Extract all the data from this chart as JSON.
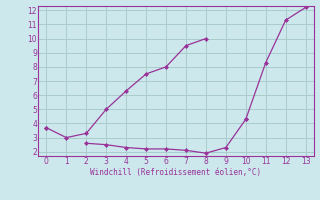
{
  "xlabel": "Windchill (Refroidissement éolien,°C)",
  "x": [
    0,
    1,
    2,
    3,
    4,
    5,
    6,
    7,
    8,
    9,
    10,
    11,
    12,
    13
  ],
  "line1": [
    3.7,
    3.0,
    3.3,
    5.0,
    6.3,
    7.5,
    8.0,
    9.5,
    10.0,
    null,
    4.3,
    8.3,
    11.3,
    12.2
  ],
  "line2": [
    3.7,
    null,
    2.6,
    2.5,
    2.3,
    2.2,
    2.2,
    2.1,
    1.9,
    2.3,
    4.3,
    null,
    null,
    null
  ],
  "color": "#993399",
  "bg_color": "#cce8ec",
  "grid_color": "#aacccc",
  "ylim": [
    1.7,
    12.3
  ],
  "xlim": [
    -0.4,
    13.4
  ],
  "yticks": [
    2,
    3,
    4,
    5,
    6,
    7,
    8,
    9,
    10,
    11,
    12
  ],
  "xticks": [
    0,
    1,
    2,
    3,
    4,
    5,
    6,
    7,
    8,
    9,
    10,
    11,
    12,
    13
  ]
}
